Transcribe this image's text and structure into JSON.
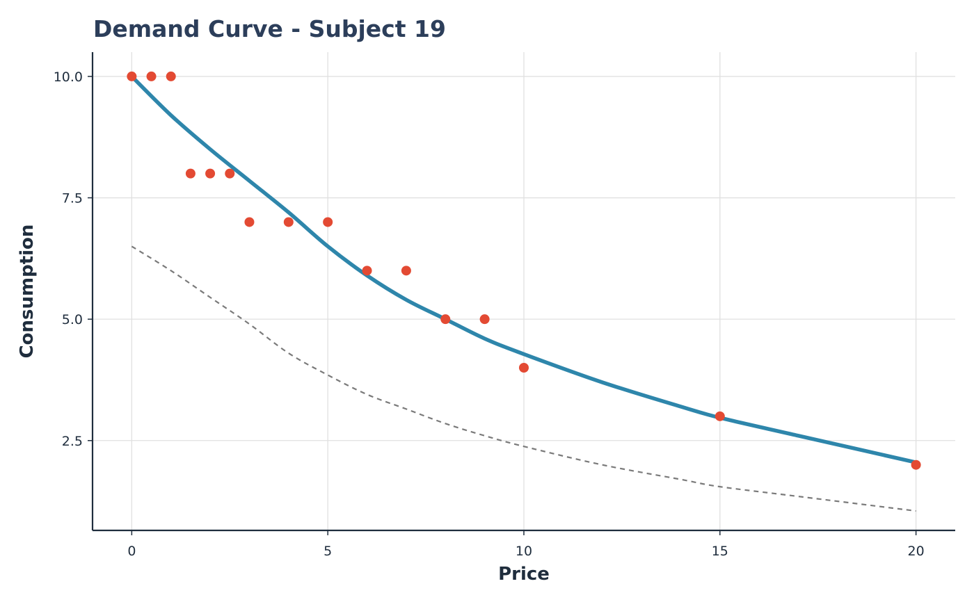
{
  "chart_data": {
    "type": "scatter",
    "title": "Demand Curve - Subject 19",
    "xlabel": "Price",
    "ylabel": "Consumption",
    "xlim": [
      -1,
      21
    ],
    "ylim": [
      0.65,
      10.5
    ],
    "xticks": [
      0,
      5,
      10,
      15,
      20
    ],
    "xtick_labels": [
      "0",
      "5",
      "10",
      "15",
      "20"
    ],
    "yticks": [
      2.5,
      5.0,
      7.5,
      10.0
    ],
    "ytick_labels": [
      "2.5",
      "5.0",
      "7.5",
      "10.0"
    ],
    "grid": true,
    "points": {
      "x": [
        0,
        0.5,
        1,
        1.5,
        2,
        2.5,
        3,
        4,
        5,
        6,
        7,
        8,
        9,
        10,
        15,
        20
      ],
      "y": [
        10,
        10,
        10,
        8,
        8,
        8,
        7,
        7,
        7,
        6,
        6,
        5,
        5,
        4,
        3,
        2
      ],
      "color": "#e34a33"
    },
    "fitted_curve": {
      "x": [
        0,
        1,
        2,
        3,
        4,
        5,
        6,
        7,
        8,
        9,
        10,
        12,
        14,
        15,
        17,
        20
      ],
      "y": [
        10.0,
        9.2,
        8.5,
        7.85,
        7.2,
        6.5,
        5.9,
        5.4,
        5.0,
        4.6,
        4.28,
        3.7,
        3.2,
        2.97,
        2.6,
        2.05
      ],
      "color": "#2e86ab",
      "style": "solid"
    },
    "reference_curve": {
      "x": [
        0,
        1,
        2,
        3,
        4,
        5,
        6,
        7,
        8,
        9,
        10,
        12,
        14,
        15,
        17,
        20
      ],
      "y": [
        6.5,
        6.0,
        5.45,
        4.9,
        4.3,
        3.85,
        3.45,
        3.15,
        2.85,
        2.6,
        2.38,
        2.0,
        1.7,
        1.55,
        1.35,
        1.05
      ],
      "color": "#7a7a7a",
      "style": "dashed"
    }
  }
}
